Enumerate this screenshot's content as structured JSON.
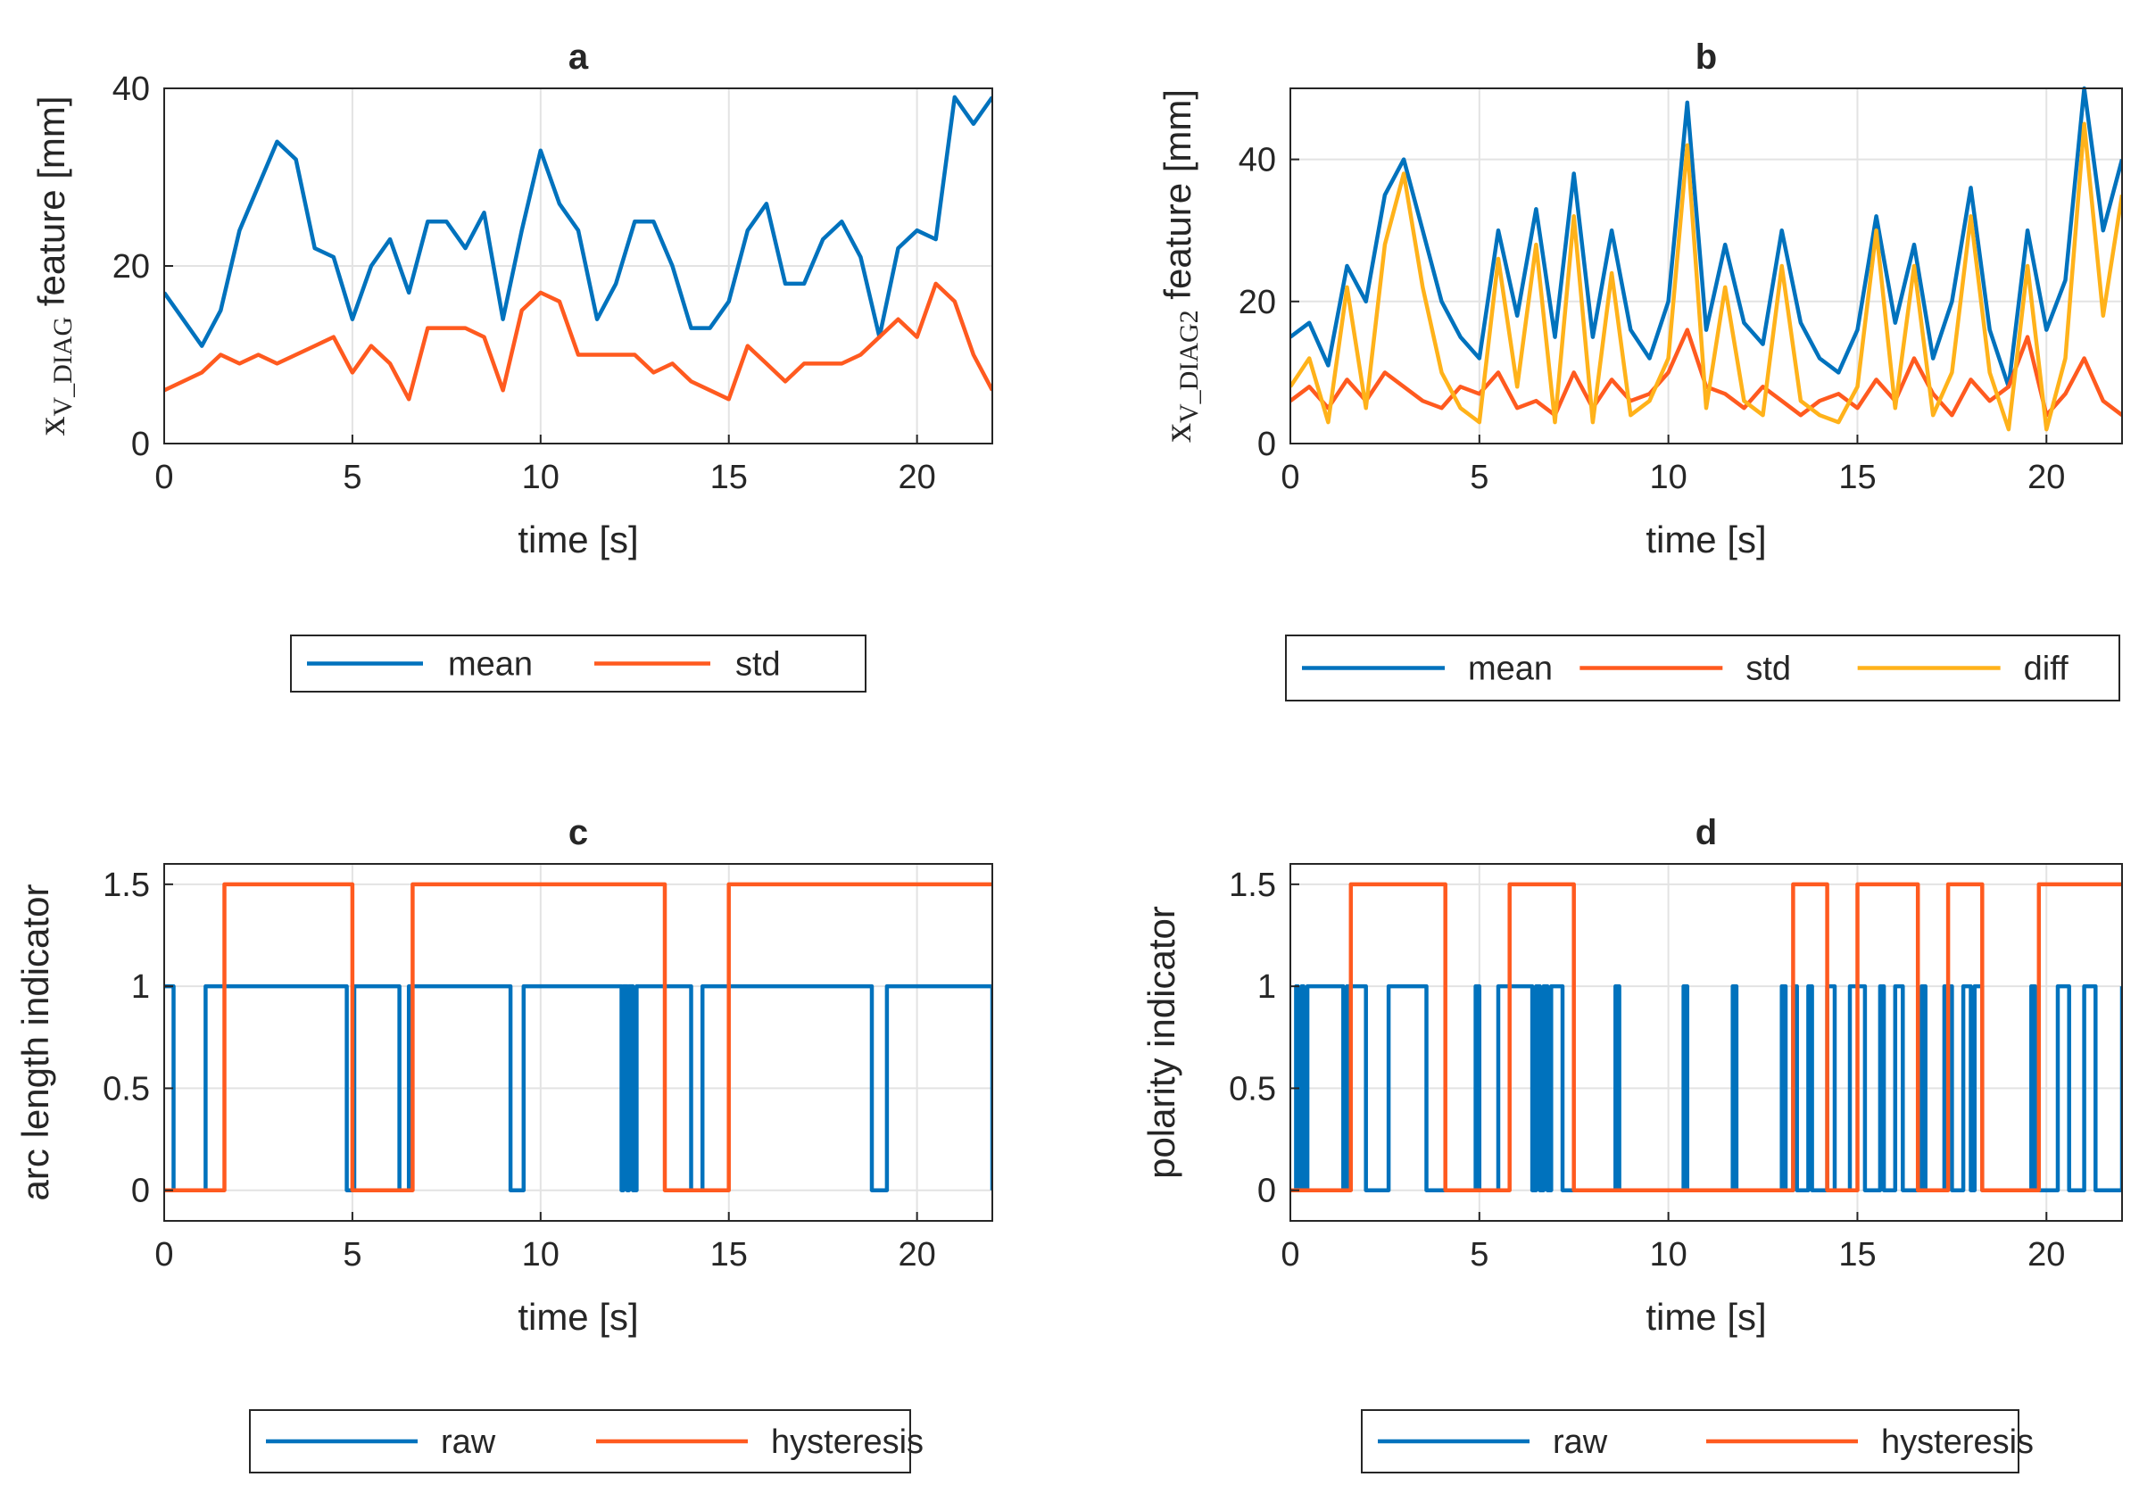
{
  "colors": {
    "blue": "#0072BD",
    "orange": "#FF5A1F",
    "yellow": "#FFB21A",
    "grid": "#e3e3e3",
    "axis": "#262626"
  },
  "chart_data": [
    {
      "id": "a",
      "type": "line",
      "title": "a",
      "xlabel": "time [s]",
      "ylabel": {
        "symbol": "x",
        "subscript": "V_DIAG",
        "rest": "feature [mm]"
      },
      "xlim": [
        0,
        22
      ],
      "ylim": [
        0,
        40
      ],
      "xticks": [
        0,
        5,
        10,
        15,
        20
      ],
      "yticks": [
        0,
        20,
        40
      ],
      "xtick_labels": [
        "0",
        "5",
        "10",
        "15",
        "20"
      ],
      "ytick_labels": [
        "0",
        "20",
        "40"
      ],
      "grid": true,
      "legend_position": "below",
      "series": [
        {
          "name": "mean",
          "color": "blue",
          "x": [
            0,
            0.5,
            1,
            1.5,
            2,
            2.5,
            3,
            3.5,
            4,
            4.5,
            5,
            5.5,
            6,
            6.5,
            7,
            7.5,
            8,
            8.5,
            9,
            9.5,
            10,
            10.5,
            11,
            11.5,
            12,
            12.5,
            13,
            13.5,
            14,
            14.5,
            15,
            15.5,
            16,
            16.5,
            17,
            17.5,
            18,
            18.5,
            19,
            19.5,
            20,
            20.5,
            21,
            21.5,
            22
          ],
          "y": [
            17,
            14,
            11,
            15,
            24,
            29,
            34,
            32,
            22,
            21,
            14,
            20,
            23,
            17,
            25,
            25,
            22,
            26,
            14,
            24,
            33,
            27,
            24,
            14,
            18,
            25,
            25,
            20,
            13,
            13,
            16,
            24,
            27,
            18,
            18,
            23,
            25,
            21,
            12,
            22,
            24,
            23,
            39,
            36,
            39
          ]
        },
        {
          "name": "std",
          "color": "orange",
          "x": [
            0,
            0.5,
            1,
            1.5,
            2,
            2.5,
            3,
            3.5,
            4,
            4.5,
            5,
            5.5,
            6,
            6.5,
            7,
            7.5,
            8,
            8.5,
            9,
            9.5,
            10,
            10.5,
            11,
            11.5,
            12,
            12.5,
            13,
            13.5,
            14,
            14.5,
            15,
            15.5,
            16,
            16.5,
            17,
            17.5,
            18,
            18.5,
            19,
            19.5,
            20,
            20.5,
            21,
            21.5,
            22
          ],
          "y": [
            6,
            7,
            8,
            10,
            9,
            10,
            9,
            10,
            11,
            12,
            8,
            11,
            9,
            5,
            13,
            13,
            13,
            12,
            6,
            15,
            17,
            16,
            10,
            10,
            10,
            10,
            8,
            9,
            7,
            6,
            5,
            11,
            9,
            7,
            9,
            9,
            9,
            10,
            12,
            14,
            12,
            18,
            16,
            10,
            6
          ]
        }
      ]
    },
    {
      "id": "b",
      "type": "line",
      "title": "b",
      "xlabel": "time [s]",
      "ylabel": {
        "symbol": "x",
        "subscript": "V_DIAG2",
        "rest": "feature [mm]"
      },
      "xlim": [
        0,
        22
      ],
      "ylim": [
        0,
        50
      ],
      "xticks": [
        0,
        5,
        10,
        15,
        20
      ],
      "yticks": [
        0,
        20,
        40
      ],
      "xtick_labels": [
        "0",
        "5",
        "10",
        "15",
        "20"
      ],
      "ytick_labels": [
        "0",
        "20",
        "40"
      ],
      "grid": true,
      "legend_position": "below",
      "series": [
        {
          "name": "mean",
          "color": "blue",
          "x": [
            0,
            0.5,
            1,
            1.5,
            2,
            2.5,
            3,
            3.5,
            4,
            4.5,
            5,
            5.5,
            6,
            6.5,
            7,
            7.5,
            8,
            8.5,
            9,
            9.5,
            10,
            10.5,
            11,
            11.5,
            12,
            12.5,
            13,
            13.5,
            14,
            14.5,
            15,
            15.5,
            16,
            16.5,
            17,
            17.5,
            18,
            18.5,
            19,
            19.5,
            20,
            20.5,
            21,
            21.5,
            22
          ],
          "y": [
            15,
            17,
            11,
            25,
            20,
            35,
            40,
            30,
            20,
            15,
            12,
            30,
            18,
            33,
            15,
            38,
            15,
            30,
            16,
            12,
            20,
            48,
            16,
            28,
            17,
            14,
            30,
            17,
            12,
            10,
            16,
            32,
            17,
            28,
            12,
            20,
            36,
            16,
            8,
            30,
            16,
            23,
            50,
            30,
            40
          ]
        },
        {
          "name": "std",
          "color": "orange",
          "x": [
            0,
            0.5,
            1,
            1.5,
            2,
            2.5,
            3,
            3.5,
            4,
            4.5,
            5,
            5.5,
            6,
            6.5,
            7,
            7.5,
            8,
            8.5,
            9,
            9.5,
            10,
            10.5,
            11,
            11.5,
            12,
            12.5,
            13,
            13.5,
            14,
            14.5,
            15,
            15.5,
            16,
            16.5,
            17,
            17.5,
            18,
            18.5,
            19,
            19.5,
            20,
            20.5,
            21,
            21.5,
            22
          ],
          "y": [
            6,
            8,
            5,
            9,
            6,
            10,
            8,
            6,
            5,
            8,
            7,
            10,
            5,
            6,
            4,
            10,
            5,
            9,
            6,
            7,
            10,
            16,
            8,
            7,
            5,
            8,
            6,
            4,
            6,
            7,
            5,
            9,
            6,
            12,
            7,
            4,
            9,
            6,
            8,
            15,
            4,
            7,
            12,
            6,
            4
          ]
        },
        {
          "name": "diff",
          "color": "yellow",
          "x": [
            0,
            0.5,
            1,
            1.5,
            2,
            2.5,
            3,
            3.5,
            4,
            4.5,
            5,
            5.5,
            6,
            6.5,
            7,
            7.5,
            8,
            8.5,
            9,
            9.5,
            10,
            10.5,
            11,
            11.5,
            12,
            12.5,
            13,
            13.5,
            14,
            14.5,
            15,
            15.5,
            16,
            16.5,
            17,
            17.5,
            18,
            18.5,
            19,
            19.5,
            20,
            20.5,
            21,
            21.5,
            22
          ],
          "y": [
            8,
            12,
            3,
            22,
            5,
            28,
            38,
            22,
            10,
            5,
            3,
            26,
            8,
            28,
            3,
            32,
            3,
            24,
            4,
            6,
            12,
            42,
            5,
            22,
            6,
            4,
            25,
            6,
            4,
            3,
            8,
            30,
            5,
            25,
            4,
            10,
            32,
            10,
            2,
            25,
            2,
            12,
            45,
            18,
            35
          ]
        }
      ]
    },
    {
      "id": "c",
      "type": "line",
      "title": "c",
      "xlabel": "time [s]",
      "ylabel": {
        "symbol": "",
        "subscript": "",
        "rest": "arc length indicator"
      },
      "xlim": [
        0,
        22
      ],
      "ylim": [
        -0.15,
        1.6
      ],
      "xticks": [
        0,
        5,
        10,
        15,
        20
      ],
      "yticks": [
        0,
        0.5,
        1,
        1.5
      ],
      "xtick_labels": [
        "0",
        "5",
        "10",
        "15",
        "20"
      ],
      "ytick_labels": [
        "0",
        "0.5",
        "1",
        "1.5"
      ],
      "grid": true,
      "legend_position": "below",
      "series": [
        {
          "name": "raw",
          "color": "blue",
          "step": true,
          "x": [
            0,
            0.25,
            1.1,
            4.85,
            5.05,
            6.25,
            6.5,
            9.2,
            9.55,
            12.15,
            12.2,
            12.3,
            12.35,
            12.45,
            12.55,
            14.0,
            14.3,
            18.8,
            19.2,
            22
          ],
          "y": [
            1,
            0,
            1,
            0,
            1,
            0,
            1,
            0,
            1,
            0,
            1,
            0,
            1,
            0,
            1,
            0,
            1,
            0,
            1,
            0
          ]
        },
        {
          "name": "hysteresis",
          "color": "orange",
          "step": true,
          "x": [
            0,
            1.6,
            5.0,
            6.6,
            13.3,
            15.0,
            22
          ],
          "y": [
            0,
            1.5,
            0,
            1.5,
            0,
            1.5,
            1.5
          ]
        }
      ]
    },
    {
      "id": "d",
      "type": "line",
      "title": "d",
      "xlabel": "time [s]",
      "ylabel": {
        "symbol": "",
        "subscript": "",
        "rest": "polarity indicator"
      },
      "xlim": [
        0,
        22
      ],
      "ylim": [
        -0.15,
        1.6
      ],
      "xticks": [
        0,
        5,
        10,
        15,
        20
      ],
      "yticks": [
        0,
        0.5,
        1,
        1.5
      ],
      "xtick_labels": [
        "0",
        "5",
        "10",
        "15",
        "20"
      ],
      "ytick_labels": [
        "0",
        "0.5",
        "1",
        "1.5"
      ],
      "grid": true,
      "legend_position": "below",
      "series": [
        {
          "name": "raw",
          "color": "blue",
          "step": true,
          "x": [
            0,
            0.15,
            0.2,
            0.3,
            0.35,
            0.45,
            1.4,
            1.5,
            2.0,
            2.6,
            2.75,
            3.6,
            4.9,
            5.0,
            5.5,
            6.4,
            6.5,
            6.6,
            6.7,
            6.8,
            6.9,
            7.2,
            8.6,
            8.7,
            10.4,
            10.5,
            11.7,
            11.8,
            13.0,
            13.1,
            13.3,
            13.4,
            13.7,
            13.8,
            14.2,
            14.4,
            14.8,
            15.2,
            15.6,
            15.7,
            16.0,
            16.2,
            16.7,
            16.8,
            17.3,
            17.5,
            17.8,
            18.0,
            18.1,
            18.3,
            19.6,
            19.7,
            20.3,
            20.6,
            21.0,
            21.3,
            22
          ],
          "y": [
            0,
            1,
            0,
            1,
            0,
            1,
            0,
            1,
            0,
            1,
            1,
            0,
            1,
            0,
            1,
            0,
            1,
            0,
            1,
            0,
            1,
            0,
            1,
            0,
            1,
            0,
            1,
            0,
            1,
            0,
            1,
            0,
            1,
            0,
            1,
            0,
            1,
            0,
            1,
            0,
            1,
            0,
            1,
            0,
            1,
            0,
            1,
            0,
            1,
            0,
            1,
            0,
            1,
            0,
            1,
            0,
            1
          ]
        },
        {
          "name": "hysteresis",
          "color": "orange",
          "step": true,
          "x": [
            0,
            1.6,
            4.1,
            5.8,
            7.5,
            13.3,
            14.2,
            15.0,
            16.6,
            17.4,
            18.3,
            19.8,
            22
          ],
          "y": [
            0,
            1.5,
            0,
            1.5,
            0,
            1.5,
            0,
            1.5,
            0,
            1.5,
            0,
            1.5,
            1.5
          ]
        }
      ]
    }
  ]
}
